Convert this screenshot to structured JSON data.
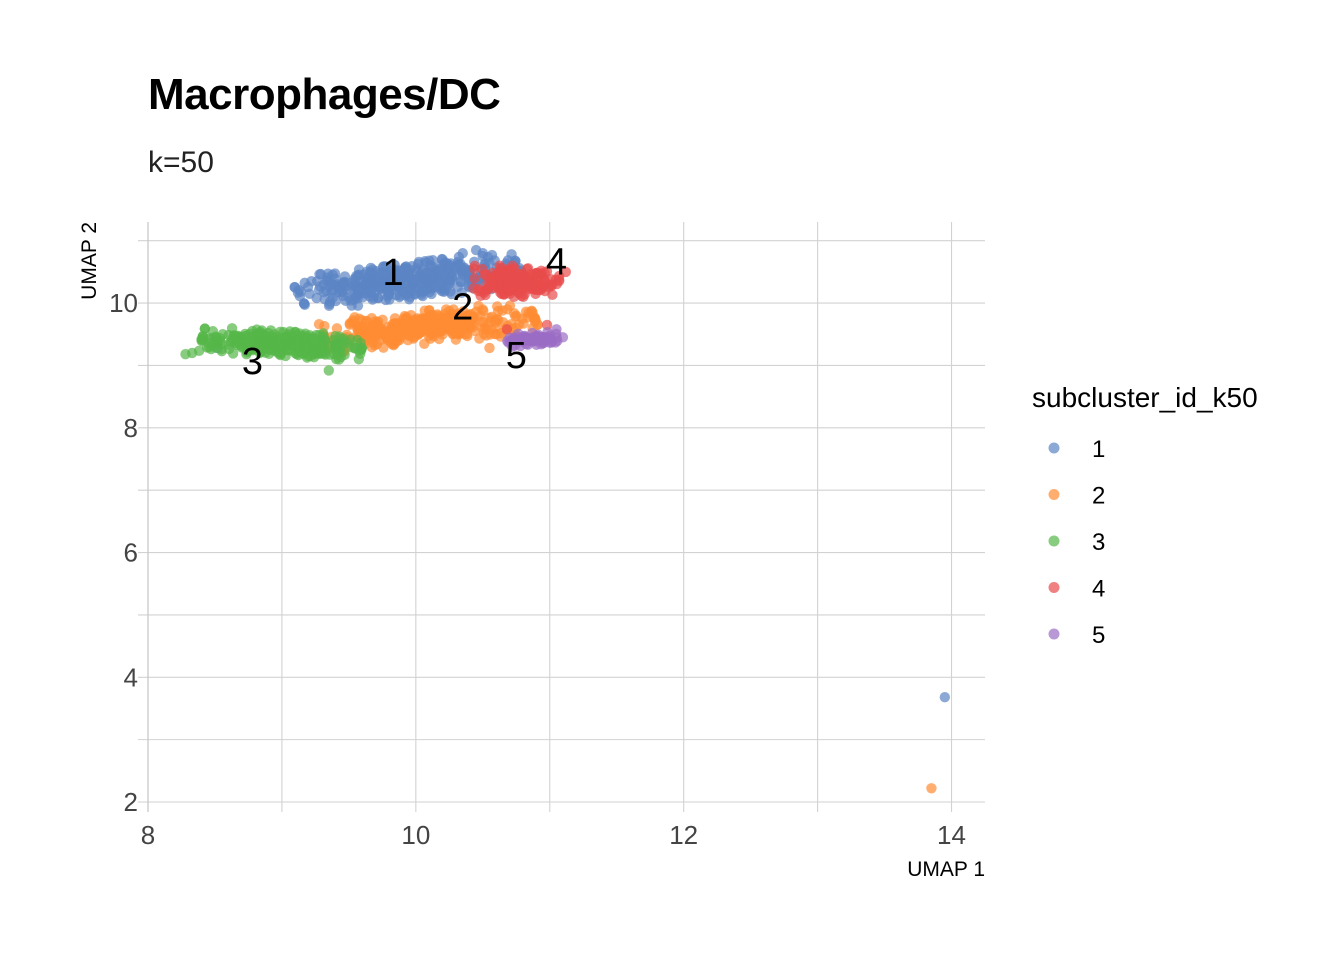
{
  "chart_data": {
    "type": "scatter",
    "title": "Macrophages/DC",
    "subtitle": "k=50",
    "xlabel": "UMAP 1",
    "ylabel": "UMAP 2",
    "xlim": [
      8,
      14.25
    ],
    "ylim": [
      2,
      11.3
    ],
    "xticks": [
      8,
      10,
      12,
      14
    ],
    "yticks": [
      2,
      4,
      6,
      8,
      10
    ],
    "grid": true,
    "legend": {
      "title": "subcluster_id_k50",
      "position": "right",
      "entries": [
        "1",
        "2",
        "3",
        "4",
        "5"
      ]
    },
    "series": [
      {
        "name": "1",
        "color": "#5B84C4",
        "clouds": [
          {
            "cx": 9.95,
            "cy": 10.35,
            "rx": 0.85,
            "ry": 0.28,
            "tilt": 0.26,
            "n": 420
          }
        ],
        "points": [
          [
            8.52,
            9.28
          ],
          [
            10.45,
            10.85
          ],
          [
            10.5,
            10.8
          ],
          [
            10.35,
            10.8
          ],
          [
            13.95,
            3.68
          ]
        ]
      },
      {
        "name": "2",
        "color": "#FF8C33",
        "clouds": [
          {
            "cx": 10.1,
            "cy": 9.62,
            "rx": 0.8,
            "ry": 0.26,
            "tilt": 0.2,
            "n": 380
          }
        ],
        "points": [
          [
            10.55,
            9.28
          ],
          [
            13.85,
            2.22
          ]
        ]
      },
      {
        "name": "3",
        "color": "#55B748",
        "clouds": [
          {
            "cx": 9.0,
            "cy": 9.35,
            "rx": 0.6,
            "ry": 0.2,
            "tilt": -0.12,
            "n": 330
          }
        ],
        "points": [
          [
            8.28,
            9.18
          ],
          [
            8.33,
            9.2
          ],
          [
            8.4,
            9.42
          ],
          [
            9.35,
            8.92
          ]
        ]
      },
      {
        "name": "4",
        "color": "#E84B4B",
        "clouds": [
          {
            "cx": 10.75,
            "cy": 10.35,
            "rx": 0.32,
            "ry": 0.25,
            "tilt": 0.0,
            "n": 180
          }
        ],
        "points": [
          [
            11.12,
            10.5
          ],
          [
            10.98,
            9.65
          ],
          [
            10.68,
            9.58
          ]
        ]
      },
      {
        "name": "5",
        "color": "#9B6CC4",
        "clouds": [
          {
            "cx": 10.88,
            "cy": 9.42,
            "rx": 0.22,
            "ry": 0.1,
            "tilt": 0.12,
            "n": 70
          }
        ],
        "points": [
          [
            10.72,
            9.3
          ],
          [
            11.05,
            9.58
          ]
        ]
      }
    ],
    "cluster_labels": [
      {
        "text": "1",
        "x": 9.83,
        "y": 10.45
      },
      {
        "text": "2",
        "x": 10.35,
        "y": 9.9
      },
      {
        "text": "3",
        "x": 8.78,
        "y": 9.02
      },
      {
        "text": "4",
        "x": 11.05,
        "y": 10.62
      },
      {
        "text": "5",
        "x": 10.75,
        "y": 9.12
      }
    ]
  }
}
